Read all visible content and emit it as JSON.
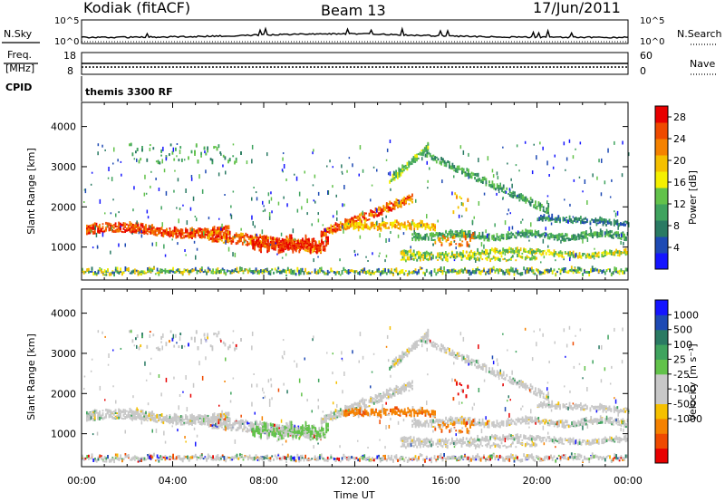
{
  "header": {
    "radar": "Kodiak (fitACF)",
    "beam": "Beam 13",
    "date": "17/Jun/2011"
  },
  "panels": {
    "nsky_label": "N.Sky",
    "nsky_ticks": [
      "10^5",
      "10^0"
    ],
    "nsearch_label": "N.Search",
    "nsearch_ticks": [
      "10^5",
      "10^0"
    ],
    "freq_label_1": "Freq.",
    "freq_label_2": "[MHz]",
    "freq_ticks": [
      "18",
      "8"
    ],
    "nave_label": "Nave",
    "nave_ticks": [
      "60",
      "0"
    ],
    "cpid_label": "CPID",
    "cpid_value": "themis 3300 RF"
  },
  "chart_data": [
    {
      "type": "heatmap",
      "parameter": "Power",
      "ylabel": "Slant Range [km]",
      "xlabel": "Time UT",
      "xlim": [
        "00:00",
        "24:00"
      ],
      "ylim": [
        180,
        4600
      ],
      "x_ticks": [
        "00:00",
        "04:00",
        "08:00",
        "12:00",
        "16:00",
        "20:00",
        "00:00"
      ],
      "y_ticks": [
        1000,
        2000,
        3000,
        4000
      ],
      "colorbar": {
        "label": "Power [dB]",
        "ticks": [
          "4",
          "8",
          "12",
          "16",
          "20",
          "24",
          "28"
        ],
        "range": [
          0,
          30
        ],
        "colors": [
          "#1515ff",
          "#1e4ab4",
          "#2a7a63",
          "#3fa35e",
          "#62c24a",
          "#f5f000",
          "#f5c000",
          "#f58200",
          "#ef4a00",
          "#e80000"
        ]
      }
    },
    {
      "type": "heatmap",
      "parameter": "Velocity",
      "ylabel": "Slant Range [km]",
      "xlabel": "Time UT",
      "xlim": [
        "00:00",
        "24:00"
      ],
      "ylim": [
        180,
        4600
      ],
      "x_ticks": [
        "00:00",
        "04:00",
        "08:00",
        "12:00",
        "16:00",
        "20:00",
        "00:00"
      ],
      "y_ticks": [
        1000,
        2000,
        3000,
        4000
      ],
      "colorbar": {
        "label": "Velocity [m s-1]",
        "ticks": [
          "1000",
          "500",
          "100",
          "25",
          "-25",
          "-100",
          "-500",
          "-1000"
        ],
        "colors": [
          "#1515ff",
          "#1e4ab4",
          "#2a7a63",
          "#3fa35e",
          "#62c24a",
          "#c8c8c8",
          "#c8c8c8",
          "#f5c000",
          "#f58200",
          "#ef4a00",
          "#e80000"
        ]
      }
    }
  ],
  "axes": {
    "xlabel": "Time UT",
    "ylabel": "Slant Range [km]",
    "power_label": "Power [dB]",
    "velocity_label": "Velocity [m s⁻¹]"
  }
}
